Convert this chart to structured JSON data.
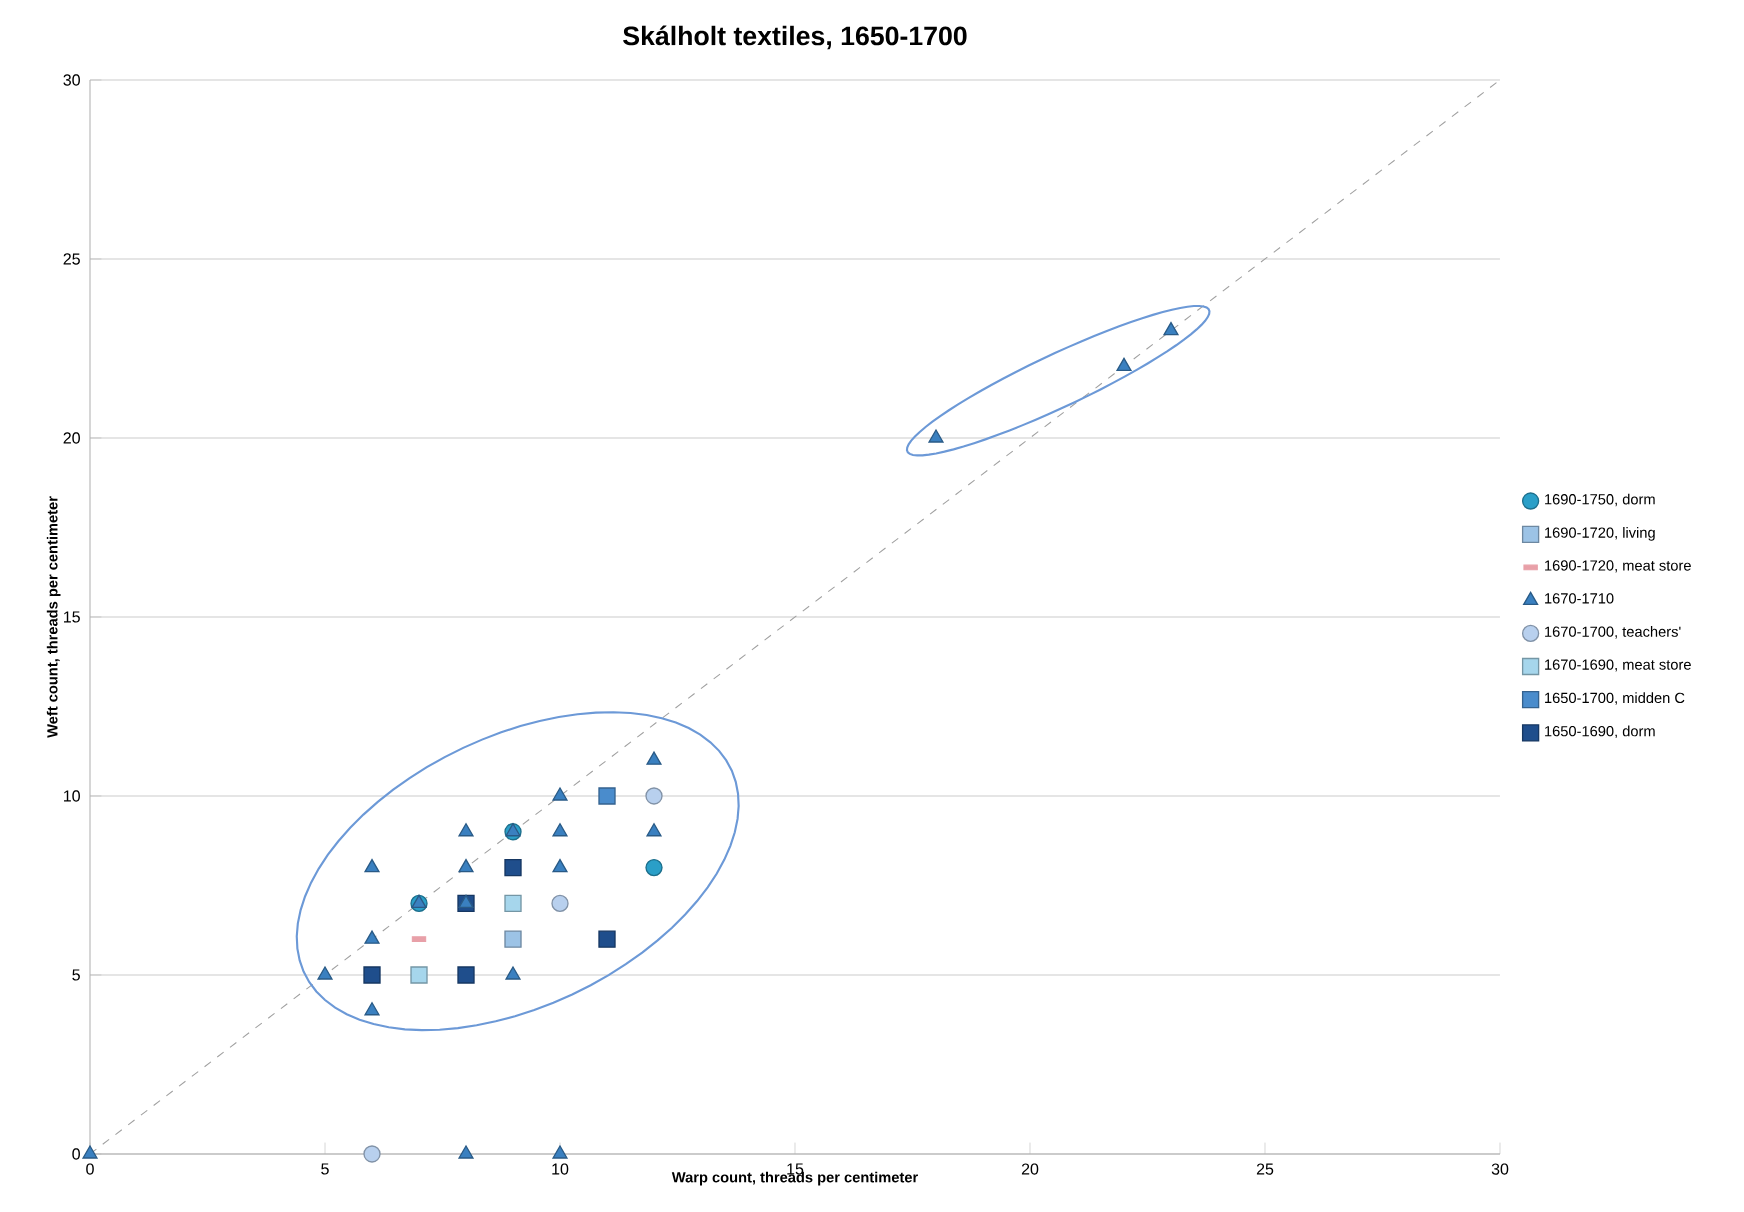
{
  "chart_data": {
    "type": "scatter",
    "title": "Skálholt textiles, 1650-1700",
    "xlabel": "Warp count, threads per centimeter",
    "ylabel": "Weft count, threads per centimeter",
    "xlim": [
      0,
      30
    ],
    "ylim": [
      0,
      30
    ],
    "xticks": [
      0,
      5,
      10,
      15,
      20,
      25,
      30
    ],
    "yticks": [
      0,
      5,
      10,
      15,
      20,
      25,
      30
    ],
    "grid": "y",
    "legend": "right",
    "series": [
      {
        "name": "1690-1750, dorm",
        "color": "#2a9fc8",
        "marker": "circle",
        "x": [
          12,
          9,
          7
        ],
        "values": [
          8,
          9,
          7
        ]
      },
      {
        "name": "1690-1720, living",
        "color": "#9cc3e6",
        "marker": "square",
        "x": [
          9
        ],
        "values": [
          6
        ]
      },
      {
        "name": "1690-1720, meat store",
        "color": "#e8a0a8",
        "x": [
          7
        ],
        "values": [
          6
        ]
      },
      {
        "name": "1670-1710",
        "color": "#3a80c0",
        "marker": "triangle",
        "x": [
          0,
          8,
          10,
          18,
          22,
          23,
          5,
          6,
          6,
          6,
          8,
          8,
          8,
          9,
          9,
          10,
          10,
          10,
          12,
          12,
          7
        ],
        "values": [
          0,
          0,
          0,
          20,
          22,
          23,
          5,
          4,
          6,
          8,
          7,
          8,
          9,
          5,
          9,
          8,
          9,
          10,
          11,
          9,
          7
        ]
      },
      {
        "name": "1670-1700, teachers'",
        "color": "#b8d0ee",
        "marker": "circle",
        "x": [
          6,
          10,
          12
        ],
        "values": [
          0,
          7,
          10
        ]
      },
      {
        "name": "1670-1690, meat store",
        "color": "#a6d6ec",
        "marker": "square",
        "x": [
          9,
          7
        ],
        "values": [
          7,
          5
        ]
      },
      {
        "name": "1650-1700, midden C",
        "color": "#4a8ccc",
        "marker": "square",
        "x": [
          11
        ],
        "values": [
          10
        ]
      },
      {
        "name": "1650-1690, dorm",
        "color": "#1f4e8c",
        "marker": "square",
        "x": [
          9,
          8,
          11,
          6,
          8
        ],
        "values": [
          8,
          7,
          6,
          5,
          5
        ]
      },
      {
        "type": "line",
        "color": "#a0a0a0",
        "line_style": "dashed",
        "marker": "none",
        "x": [
          0,
          30
        ],
        "values": [
          0,
          30
        ]
      }
    ]
  }
}
